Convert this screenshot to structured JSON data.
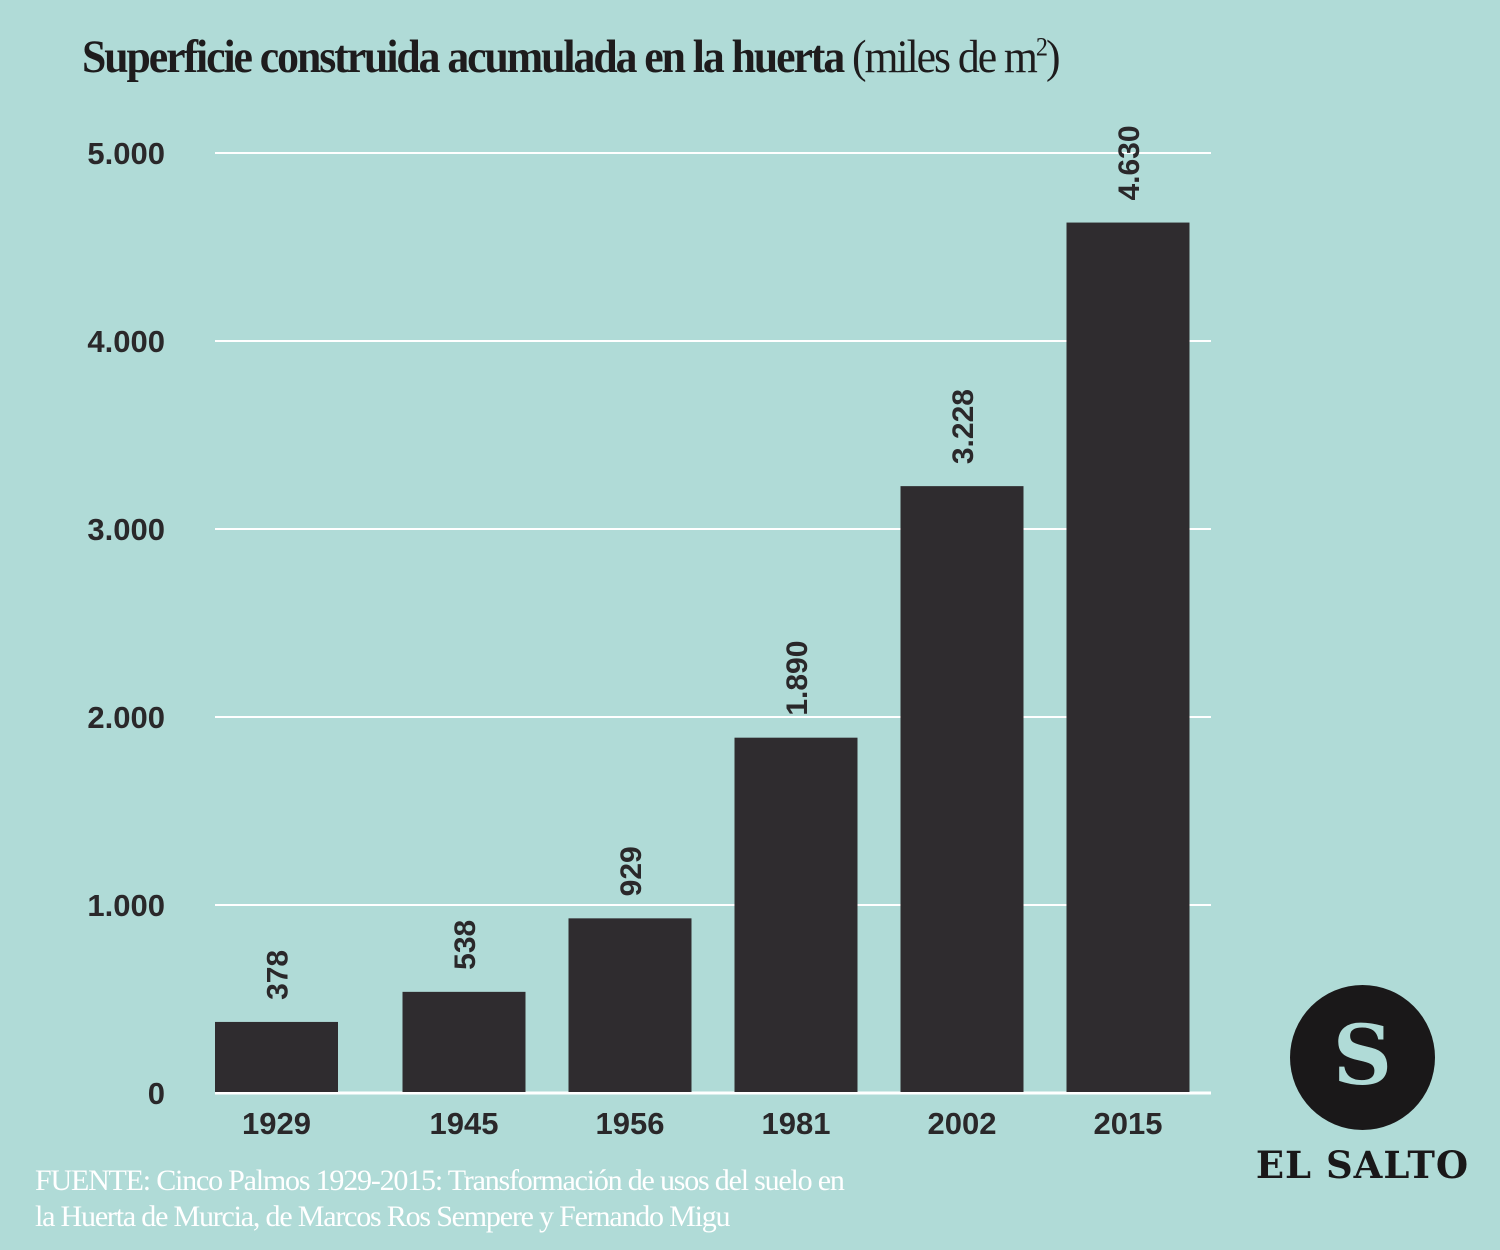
{
  "title": {
    "main": "Superficie construida acumulada en la huerta",
    "unit_prefix": "(miles de m",
    "unit_sup": "2",
    "unit_suffix": ")"
  },
  "chart_data": {
    "type": "bar",
    "title": "Superficie construida acumulada en la huerta (miles de m²)",
    "xlabel": "",
    "ylabel": "",
    "categories": [
      "1929",
      "1945",
      "1956",
      "1981",
      "2002",
      "2015"
    ],
    "values": [
      378,
      538,
      929,
      1890,
      3228,
      4630
    ],
    "value_labels": [
      "378",
      "538",
      "929",
      "1.890",
      "3.228",
      "4.630"
    ],
    "ylim": [
      0,
      5000
    ],
    "yticks": [
      0,
      1000,
      2000,
      3000,
      4000,
      5000
    ],
    "ytick_labels": [
      "0",
      "1.000",
      "2.000",
      "3.000",
      "4.000",
      "5.000"
    ],
    "grid": true,
    "legend": "none",
    "colors": {
      "bar": "#2f2c2f",
      "grid": "#ffffff",
      "background": "#b0dbd7",
      "text": "#2a282a"
    }
  },
  "source": {
    "line1": "FUENTE:  Cinco Palmos 1929-2015: Transformación de usos del suelo en",
    "line2": "la Huerta de Murcia, de Marcos Ros Sempere y Fernando Migu"
  },
  "logo": {
    "letter": "S",
    "name": "EL SALTO"
  }
}
